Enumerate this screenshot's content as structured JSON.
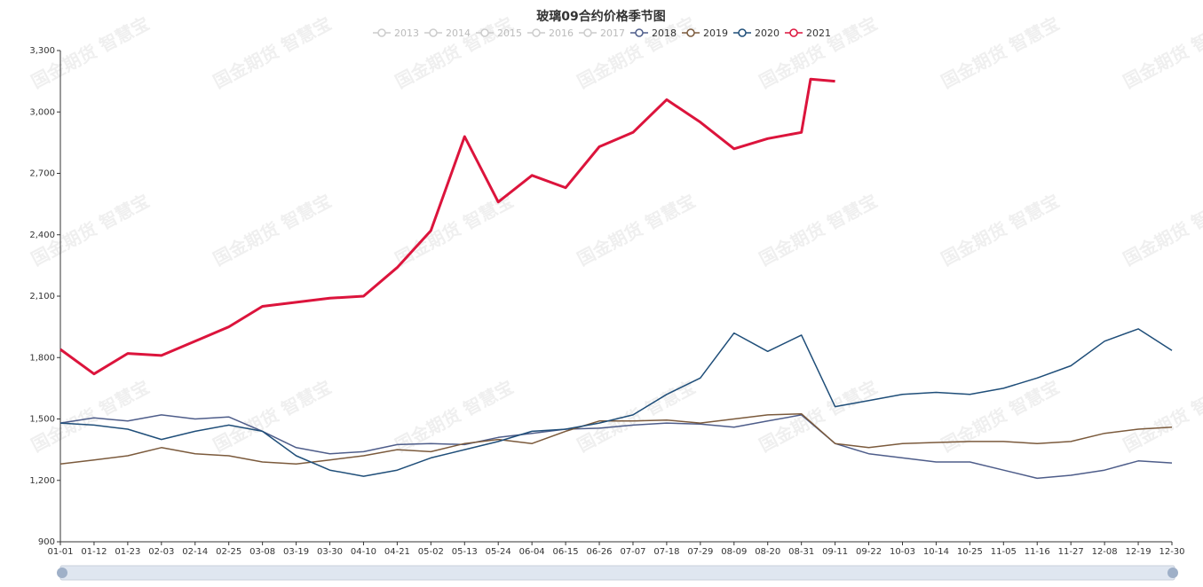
{
  "chart_data": {
    "type": "line",
    "title": "玻璃09合约价格季节图",
    "xlabel": "",
    "ylabel": "",
    "ylim": [
      900,
      3300
    ],
    "yticks": [
      900,
      1200,
      1500,
      1800,
      2100,
      2400,
      2700,
      3000,
      3300
    ],
    "x_tick_labels": [
      "01-01",
      "01-12",
      "01-23",
      "02-03",
      "02-14",
      "02-25",
      "03-08",
      "03-19",
      "03-30",
      "04-10",
      "04-21",
      "05-02",
      "05-13",
      "05-24",
      "06-04",
      "06-15",
      "06-26",
      "07-07",
      "07-18",
      "07-29",
      "08-09",
      "08-20",
      "08-31",
      "09-11",
      "09-22",
      "10-03",
      "10-14",
      "10-25",
      "11-05",
      "11-16",
      "11-27",
      "12-08",
      "12-19",
      "12-30"
    ],
    "legend": [
      {
        "name": "2013",
        "color": "#cccccc",
        "active": false
      },
      {
        "name": "2014",
        "color": "#cccccc",
        "active": false
      },
      {
        "name": "2015",
        "color": "#cccccc",
        "active": false
      },
      {
        "name": "2016",
        "color": "#cccccc",
        "active": false
      },
      {
        "name": "2017",
        "color": "#cccccc",
        "active": false
      },
      {
        "name": "2018",
        "color": "#4e5d8a",
        "active": true
      },
      {
        "name": "2019",
        "color": "#7b5a3c",
        "active": true
      },
      {
        "name": "2020",
        "color": "#1f4e79",
        "active": true
      },
      {
        "name": "2021",
        "color": "#dc143c",
        "active": true
      }
    ],
    "series": [
      {
        "name": "2018",
        "color": "#4e5d8a",
        "width": 1.5,
        "points": [
          [
            "01-01",
            1480
          ],
          [
            "01-12",
            1505
          ],
          [
            "01-23",
            1490
          ],
          [
            "02-03",
            1520
          ],
          [
            "02-14",
            1500
          ],
          [
            "02-25",
            1510
          ],
          [
            "03-08",
            1440
          ],
          [
            "03-19",
            1360
          ],
          [
            "03-30",
            1330
          ],
          [
            "04-10",
            1340
          ],
          [
            "04-21",
            1375
          ],
          [
            "05-02",
            1380
          ],
          [
            "05-13",
            1375
          ],
          [
            "05-24",
            1410
          ],
          [
            "06-04",
            1430
          ],
          [
            "06-15",
            1450
          ],
          [
            "06-26",
            1455
          ],
          [
            "07-07",
            1470
          ],
          [
            "07-18",
            1480
          ],
          [
            "07-29",
            1475
          ],
          [
            "08-09",
            1460
          ],
          [
            "08-20",
            1490
          ],
          [
            "08-31",
            1520
          ],
          [
            "09-11",
            1380
          ],
          [
            "09-22",
            1330
          ],
          [
            "10-03",
            1310
          ],
          [
            "10-14",
            1290
          ],
          [
            "10-25",
            1290
          ],
          [
            "11-05",
            1250
          ],
          [
            "11-16",
            1210
          ],
          [
            "11-27",
            1225
          ],
          [
            "12-08",
            1250
          ],
          [
            "12-19",
            1295
          ],
          [
            "12-30",
            1285
          ]
        ]
      },
      {
        "name": "2019",
        "color": "#7b5a3c",
        "width": 1.5,
        "points": [
          [
            "01-01",
            1280
          ],
          [
            "01-12",
            1300
          ],
          [
            "01-23",
            1320
          ],
          [
            "02-03",
            1360
          ],
          [
            "02-14",
            1330
          ],
          [
            "02-25",
            1320
          ],
          [
            "03-08",
            1290
          ],
          [
            "03-19",
            1280
          ],
          [
            "03-30",
            1300
          ],
          [
            "04-10",
            1320
          ],
          [
            "04-21",
            1350
          ],
          [
            "05-02",
            1340
          ],
          [
            "05-13",
            1380
          ],
          [
            "05-24",
            1400
          ],
          [
            "06-04",
            1380
          ],
          [
            "06-15",
            1440
          ],
          [
            "06-26",
            1490
          ],
          [
            "07-07",
            1490
          ],
          [
            "07-18",
            1495
          ],
          [
            "07-29",
            1480
          ],
          [
            "08-09",
            1500
          ],
          [
            "08-20",
            1520
          ],
          [
            "08-31",
            1525
          ],
          [
            "09-11",
            1380
          ],
          [
            "09-22",
            1360
          ],
          [
            "10-03",
            1380
          ],
          [
            "10-14",
            1385
          ],
          [
            "10-25",
            1390
          ],
          [
            "11-05",
            1390
          ],
          [
            "11-16",
            1380
          ],
          [
            "11-27",
            1390
          ],
          [
            "12-08",
            1430
          ],
          [
            "12-19",
            1450
          ],
          [
            "12-30",
            1460
          ]
        ]
      },
      {
        "name": "2020",
        "color": "#1f4e79",
        "width": 1.5,
        "points": [
          [
            "01-01",
            1480
          ],
          [
            "01-12",
            1470
          ],
          [
            "01-23",
            1450
          ],
          [
            "02-03",
            1400
          ],
          [
            "02-14",
            1440
          ],
          [
            "02-25",
            1470
          ],
          [
            "03-08",
            1440
          ],
          [
            "03-19",
            1320
          ],
          [
            "03-30",
            1250
          ],
          [
            "04-10",
            1220
          ],
          [
            "04-21",
            1250
          ],
          [
            "05-02",
            1310
          ],
          [
            "05-13",
            1350
          ],
          [
            "05-24",
            1390
          ],
          [
            "06-04",
            1440
          ],
          [
            "06-15",
            1450
          ],
          [
            "06-26",
            1480
          ],
          [
            "07-07",
            1520
          ],
          [
            "07-18",
            1620
          ],
          [
            "07-29",
            1700
          ],
          [
            "08-09",
            1920
          ],
          [
            "08-20",
            1830
          ],
          [
            "08-31",
            1910
          ],
          [
            "09-11",
            1560
          ],
          [
            "09-22",
            1590
          ],
          [
            "10-03",
            1620
          ],
          [
            "10-14",
            1630
          ],
          [
            "10-25",
            1620
          ],
          [
            "11-05",
            1650
          ],
          [
            "11-16",
            1700
          ],
          [
            "11-27",
            1760
          ],
          [
            "12-08",
            1880
          ],
          [
            "12-19",
            1940
          ],
          [
            "12-30",
            1835
          ]
        ]
      },
      {
        "name": "2021",
        "color": "#dc143c",
        "width": 3,
        "points": [
          [
            "01-01",
            1840
          ],
          [
            "01-12",
            1720
          ],
          [
            "01-23",
            1820
          ],
          [
            "02-03",
            1810
          ],
          [
            "02-14",
            1880
          ],
          [
            "02-25",
            1950
          ],
          [
            "03-08",
            2050
          ],
          [
            "03-19",
            2070
          ],
          [
            "03-30",
            2090
          ],
          [
            "04-10",
            2100
          ],
          [
            "04-21",
            2240
          ],
          [
            "05-02",
            2420
          ],
          [
            "05-13",
            2880
          ],
          [
            "05-24",
            2560
          ],
          [
            "06-04",
            2690
          ],
          [
            "06-15",
            2630
          ],
          [
            "06-26",
            2830
          ],
          [
            "07-07",
            2900
          ],
          [
            "07-18",
            3060
          ],
          [
            "07-29",
            2950
          ],
          [
            "08-09",
            2820
          ],
          [
            "08-20",
            2870
          ],
          [
            "08-31",
            2900
          ],
          [
            "09-03",
            3160
          ],
          [
            "09-11",
            3150
          ]
        ]
      }
    ]
  },
  "watermark_text": "国金期货 智慧宝"
}
